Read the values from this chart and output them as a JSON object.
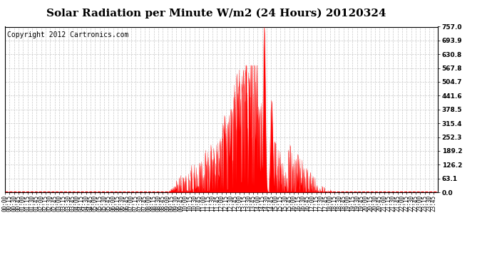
{
  "title": "Solar Radiation per Minute W/m2 (24 Hours) 20120324",
  "copyright_text": "Copyright 2012 Cartronics.com",
  "y_ticks": [
    0.0,
    63.1,
    126.2,
    189.2,
    252.3,
    315.4,
    378.5,
    441.6,
    504.7,
    567.8,
    630.8,
    693.9,
    757.0
  ],
  "y_max": 757.0,
  "y_min": 0.0,
  "fill_color": "#FF0000",
  "line_color": "#FF0000",
  "dashed_line_color": "#FF0000",
  "grid_color": "#C8C8C8",
  "background_color": "#FFFFFF",
  "border_color": "#000000",
  "title_fontsize": 11,
  "copyright_fontsize": 7,
  "tick_fontsize": 6.5,
  "total_minutes": 1440
}
